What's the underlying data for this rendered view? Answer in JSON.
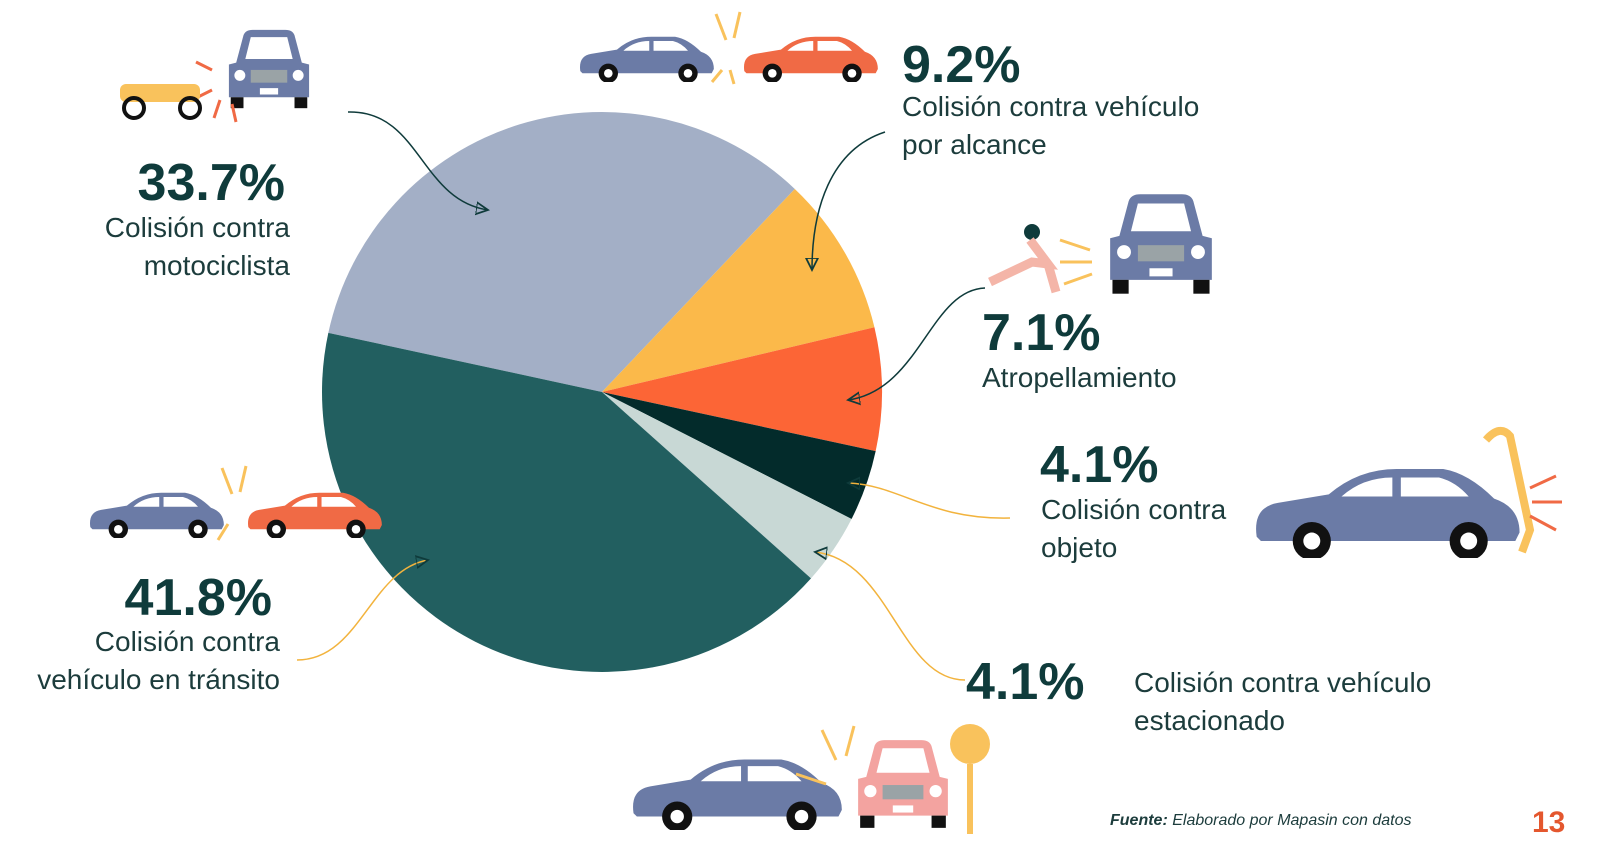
{
  "chart_data": {
    "type": "pie",
    "categories": [
      "Colisión contra motociclista",
      "Colisión contra vehículo por alcance",
      "Atropellamiento",
      "Colisión contra objeto",
      "Colisión contra vehículo estacionado",
      "Colisión contra vehículo en tránsito"
    ],
    "values": [
      33.7,
      9.2,
      7.1,
      4.1,
      4.1,
      41.8
    ],
    "value_labels": [
      "33.7%",
      "9.2%",
      "7.1%",
      "4.1%",
      "4.1%",
      "41.8%"
    ],
    "colors": [
      "#a3afc6",
      "#fbb94a",
      "#fc6536",
      "#032b2b",
      "#c8d8d5",
      "#225f60"
    ]
  },
  "source_label": "Fuente:",
  "source": "Elaborado por Mapasin con datos",
  "page_number": "13"
}
